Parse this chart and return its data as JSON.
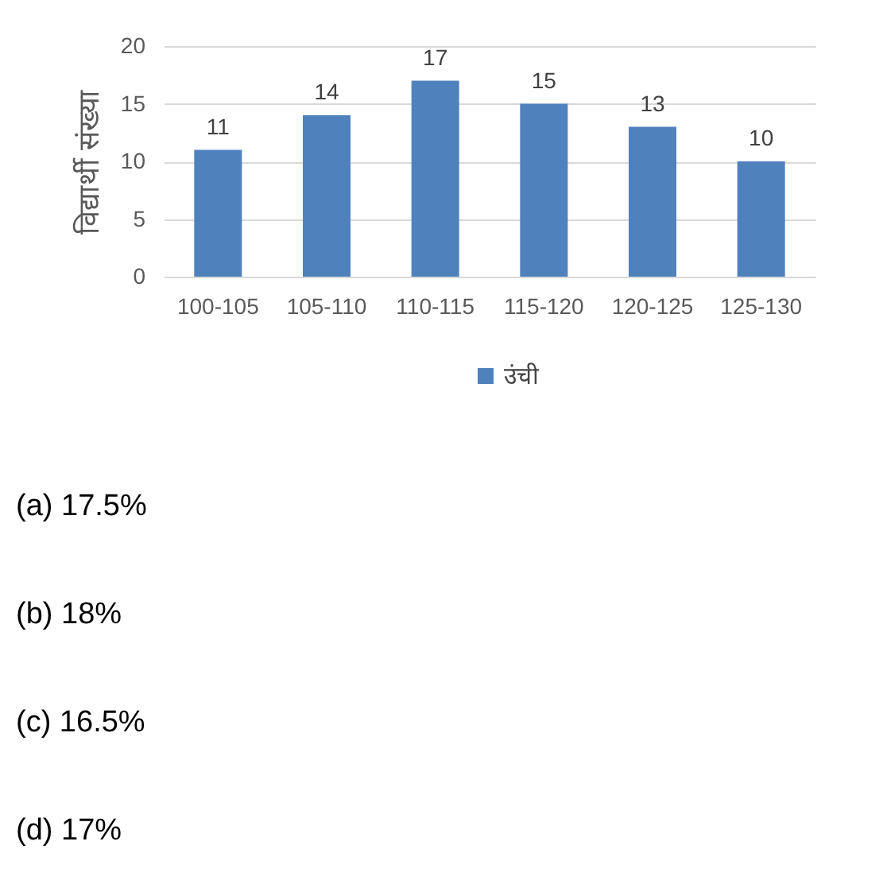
{
  "chart_data": {
    "type": "bar",
    "ylabel": "विद्यार्थी संख्या",
    "categories": [
      "100-105",
      "105-110",
      "110-115",
      "115-120",
      "120-125",
      "125-130"
    ],
    "series": [
      {
        "name": "उंची",
        "color": "#4f81bd",
        "values": [
          11,
          14,
          17,
          15,
          13,
          10
        ]
      }
    ],
    "ylim": [
      0,
      20
    ],
    "yticks": [
      0,
      5,
      10,
      15,
      20
    ],
    "grid": "y",
    "legend": "bottom",
    "data_labels": true,
    "annotations": [
      "(a) 17.5%",
      "(b) 18%",
      "(c) 16.5%",
      "(d) 17%"
    ]
  }
}
